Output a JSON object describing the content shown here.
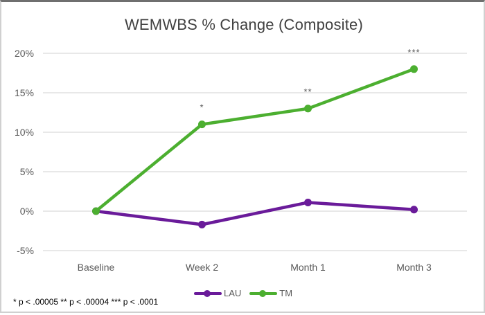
{
  "chart_data": {
    "type": "line",
    "title": "WEMWBS % Change (Composite)",
    "xlabel": "",
    "ylabel": "",
    "categories": [
      "Baseline",
      "Week 2",
      "Month 1",
      "Month 3"
    ],
    "series": [
      {
        "name": "LAU",
        "color": "#6a1b9a",
        "values": [
          0,
          -1.7,
          1.1,
          0.2
        ]
      },
      {
        "name": "TM",
        "color": "#4caf30",
        "values": [
          0,
          11,
          13,
          18
        ]
      }
    ],
    "ylim": [
      -5,
      20
    ],
    "yticks": [
      "-5%",
      "0%",
      "5%",
      "10%",
      "15%",
      "20%"
    ],
    "ytick_values": [
      -5,
      0,
      5,
      10,
      15,
      20
    ],
    "grid": true,
    "legend_position": "bottom",
    "annotations": [
      {
        "category": "Week 2",
        "series": "TM",
        "text": "*"
      },
      {
        "category": "Month 1",
        "series": "TM",
        "text": "**"
      },
      {
        "category": "Month 3",
        "series": "TM",
        "text": "***"
      }
    ],
    "footnote": "* p < .00005   ** p < .00004   *** p < .0001"
  },
  "colors": {
    "lau": "#6a1b9a",
    "tm": "#4caf30",
    "grid": "#d9d9d9",
    "axis_text": "#595959",
    "title": "#404040"
  }
}
